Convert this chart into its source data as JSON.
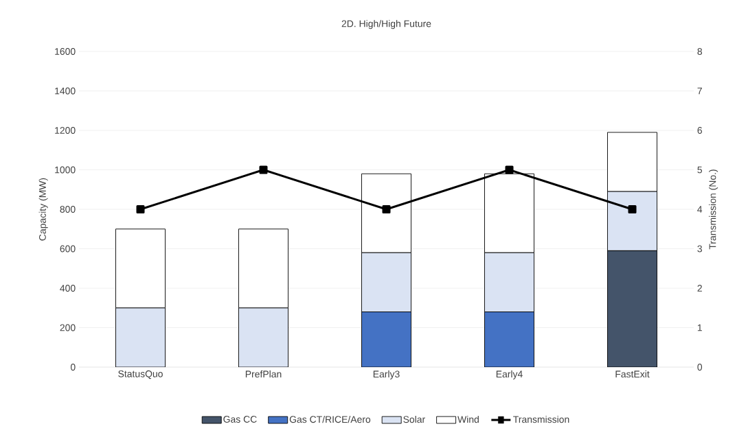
{
  "chart_data": {
    "type": "bar",
    "title": "2D. High/High Future",
    "stacked": true,
    "categories": [
      "StatusQuo",
      "PrefPlan",
      "Early3",
      "Early4",
      "FastExit"
    ],
    "series": [
      {
        "name": "Gas CC",
        "color": "#44546a",
        "values": [
          0,
          0,
          0,
          0,
          590
        ]
      },
      {
        "name": "Gas CT/RICE/Aero",
        "color": "#4472c4",
        "values": [
          0,
          0,
          280,
          280,
          0
        ]
      },
      {
        "name": "Solar",
        "color": "#dae3f3",
        "values": [
          300,
          300,
          300,
          300,
          300
        ]
      },
      {
        "name": "Wind",
        "color": "#ffffff",
        "values": [
          400,
          400,
          400,
          400,
          300
        ]
      },
      {
        "name": "Transmission",
        "type": "line",
        "axis": "y2",
        "color": "#000000",
        "marker": "square",
        "values": [
          4,
          5,
          4,
          5,
          4
        ]
      }
    ],
    "ylabel": "Capacity (MW)",
    "y2label": "Transmission  (No.)",
    "ylim": [
      0,
      1600
    ],
    "yticks": [
      0,
      200,
      400,
      600,
      800,
      1000,
      1200,
      1400,
      1600
    ],
    "y2lim": [
      0,
      8
    ],
    "y2ticks": [
      0,
      1,
      2,
      3,
      4,
      5,
      6,
      7,
      8
    ],
    "grid": "y",
    "legend": "bottom"
  }
}
